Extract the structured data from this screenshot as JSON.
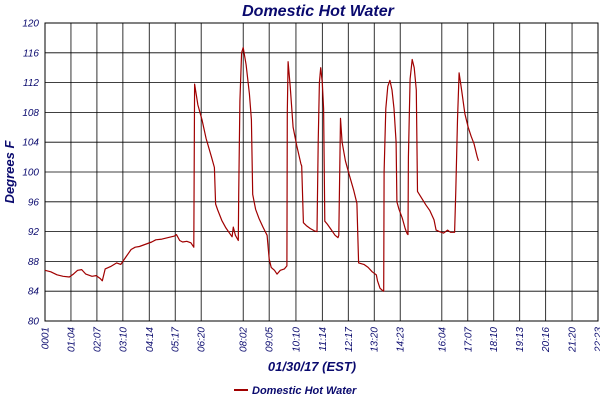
{
  "chart_data": {
    "type": "line",
    "title": "Domestic Hot Water",
    "xlabel": "01/30/17 (EST)",
    "ylabel": "Degrees F",
    "ylim": [
      80,
      120
    ],
    "yticks": [
      80,
      84,
      88,
      92,
      96,
      100,
      104,
      108,
      112,
      116,
      120
    ],
    "xlim": [
      1,
      1343
    ],
    "xticks": [
      {
        "label": "0001",
        "value": 1
      },
      {
        "label": "01:04",
        "value": 64
      },
      {
        "label": "02:07",
        "value": 127
      },
      {
        "label": "03:10",
        "value": 190
      },
      {
        "label": "04:14",
        "value": 254
      },
      {
        "label": "05:17",
        "value": 317
      },
      {
        "label": "06:20",
        "value": 380
      },
      {
        "label": "08:02",
        "value": 482
      },
      {
        "label": "09:05",
        "value": 545
      },
      {
        "label": "10:10",
        "value": 610
      },
      {
        "label": "11:14",
        "value": 674
      },
      {
        "label": "12:17",
        "value": 737
      },
      {
        "label": "13:20",
        "value": 800
      },
      {
        "label": "14:23",
        "value": 863
      },
      {
        "label": "16:04",
        "value": 964
      },
      {
        "label": "17:07",
        "value": 1027
      },
      {
        "label": "18:10",
        "value": 1090
      },
      {
        "label": "19:13",
        "value": 1153
      },
      {
        "label": "20:16",
        "value": 1216
      },
      {
        "label": "21:20",
        "value": 1280
      },
      {
        "label": "22:23",
        "value": 1343
      }
    ],
    "grid": true,
    "legend": "bottom",
    "series": [
      {
        "name": "Domestic Hot Water",
        "color": "#a00000",
        "points": [
          [
            1,
            86.8
          ],
          [
            15,
            86.6
          ],
          [
            30,
            86.2
          ],
          [
            45,
            86.0
          ],
          [
            60,
            85.9
          ],
          [
            70,
            86.3
          ],
          [
            80,
            86.8
          ],
          [
            90,
            86.9
          ],
          [
            100,
            86.3
          ],
          [
            115,
            86.0
          ],
          [
            125,
            86.1
          ],
          [
            135,
            85.7
          ],
          [
            140,
            85.4
          ],
          [
            147,
            87.0
          ],
          [
            160,
            87.3
          ],
          [
            175,
            87.8
          ],
          [
            185,
            87.6
          ],
          [
            190,
            88.0
          ],
          [
            200,
            88.8
          ],
          [
            210,
            89.6
          ],
          [
            220,
            89.9
          ],
          [
            230,
            90.0
          ],
          [
            240,
            90.2
          ],
          [
            250,
            90.4
          ],
          [
            260,
            90.6
          ],
          [
            270,
            90.9
          ],
          [
            285,
            91.0
          ],
          [
            300,
            91.2
          ],
          [
            315,
            91.4
          ],
          [
            320,
            91.6
          ],
          [
            328,
            90.8
          ],
          [
            335,
            90.6
          ],
          [
            345,
            90.7
          ],
          [
            355,
            90.5
          ],
          [
            362,
            89.9
          ],
          [
            364,
            111.8
          ],
          [
            372,
            109.0
          ],
          [
            382,
            107.0
          ],
          [
            392,
            104.5
          ],
          [
            405,
            102.0
          ],
          [
            412,
            100.6
          ],
          [
            415,
            95.7
          ],
          [
            420,
            94.9
          ],
          [
            430,
            93.5
          ],
          [
            440,
            92.5
          ],
          [
            450,
            91.7
          ],
          [
            455,
            91.3
          ],
          [
            458,
            92.6
          ],
          [
            463,
            91.5
          ],
          [
            470,
            90.8
          ],
          [
            471,
            97.0
          ],
          [
            474,
            109.5
          ],
          [
            478,
            116.0
          ],
          [
            482,
            116.7
          ],
          [
            489,
            114.4
          ],
          [
            497,
            110.5
          ],
          [
            502,
            107.0
          ],
          [
            505,
            97.0
          ],
          [
            512,
            95.0
          ],
          [
            520,
            93.8
          ],
          [
            530,
            92.6
          ],
          [
            540,
            91.5
          ],
          [
            545,
            88.3
          ],
          [
            550,
            87.2
          ],
          [
            558,
            86.8
          ],
          [
            564,
            86.3
          ],
          [
            572,
            86.8
          ],
          [
            582,
            87.0
          ],
          [
            588,
            87.4
          ],
          [
            589,
            108.0
          ],
          [
            591,
            114.8
          ],
          [
            596,
            111.5
          ],
          [
            603,
            106.0
          ],
          [
            612,
            103.5
          ],
          [
            622,
            101.1
          ],
          [
            624,
            100.8
          ],
          [
            628,
            93.2
          ],
          [
            635,
            92.8
          ],
          [
            645,
            92.4
          ],
          [
            655,
            92.1
          ],
          [
            661,
            92.0
          ],
          [
            664,
            104.0
          ],
          [
            667,
            112.0
          ],
          [
            670,
            114.0
          ],
          [
            674,
            112.0
          ],
          [
            677,
            108.5
          ],
          [
            680,
            93.4
          ],
          [
            686,
            93.0
          ],
          [
            695,
            92.3
          ],
          [
            705,
            91.5
          ],
          [
            712,
            91.2
          ],
          [
            714,
            91.5
          ],
          [
            718,
            107.2
          ],
          [
            722,
            104.0
          ],
          [
            730,
            101.5
          ],
          [
            740,
            99.5
          ],
          [
            750,
            97.6
          ],
          [
            758,
            95.8
          ],
          [
            762,
            87.8
          ],
          [
            775,
            87.6
          ],
          [
            785,
            87.2
          ],
          [
            795,
            86.6
          ],
          [
            805,
            86.2
          ],
          [
            808,
            85.4
          ],
          [
            814,
            84.4
          ],
          [
            820,
            84.1
          ],
          [
            823,
            84.0
          ],
          [
            824,
            100.0
          ],
          [
            828,
            108.5
          ],
          [
            833,
            111.5
          ],
          [
            838,
            112.3
          ],
          [
            843,
            111.0
          ],
          [
            848,
            108.5
          ],
          [
            853,
            104.0
          ],
          [
            855,
            96.0
          ],
          [
            860,
            95.0
          ],
          [
            868,
            93.8
          ],
          [
            875,
            92.4
          ],
          [
            880,
            91.7
          ],
          [
            882,
            91.6
          ],
          [
            883,
            102.0
          ],
          [
            887,
            112.5
          ],
          [
            892,
            115.1
          ],
          [
            897,
            114.0
          ],
          [
            902,
            111.0
          ],
          [
            905,
            97.4
          ],
          [
            915,
            96.5
          ],
          [
            925,
            95.6
          ],
          [
            935,
            94.8
          ],
          [
            945,
            93.6
          ],
          [
            950,
            92.2
          ],
          [
            958,
            92.0
          ],
          [
            968,
            91.8
          ],
          [
            978,
            92.2
          ],
          [
            985,
            91.9
          ],
          [
            995,
            91.9
          ],
          [
            998,
            97.5
          ],
          [
            1002,
            107.0
          ],
          [
            1006,
            113.3
          ],
          [
            1012,
            111.0
          ],
          [
            1020,
            107.8
          ],
          [
            1028,
            106.0
          ],
          [
            1035,
            104.8
          ],
          [
            1042,
            103.8
          ],
          [
            1050,
            102.0
          ],
          [
            1053,
            101.5
          ]
        ]
      }
    ]
  }
}
